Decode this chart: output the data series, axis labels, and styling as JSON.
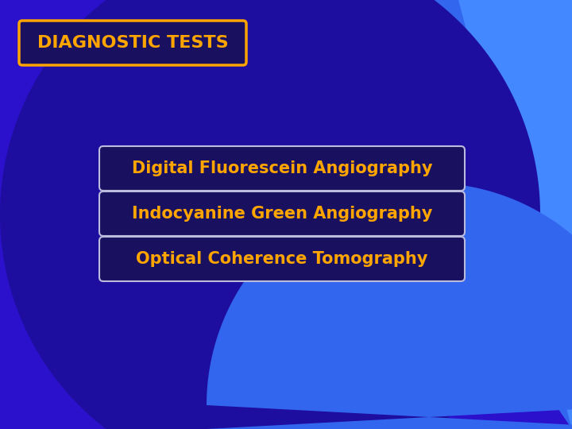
{
  "title": "DIAGNOSTIC TESTS",
  "items": [
    "Digital Fluorescein Angiography",
    "Indocyanine Green Angiography",
    "Optical Coherence Tomography"
  ],
  "bg_color_main": "#2B10CC",
  "bg_color_light_blue": "#3366EE",
  "bg_color_medium_blue": "#4488FF",
  "bg_dark_circle": "#1E0EA0",
  "text_color": "#FFA500",
  "title_box_facecolor": "#1A1060",
  "title_box_edge": "#FFA500",
  "item_box_facecolor": "#1A1060",
  "item_box_edge": "#BBBBDD",
  "title_fontsize": 16,
  "item_fontsize": 15
}
